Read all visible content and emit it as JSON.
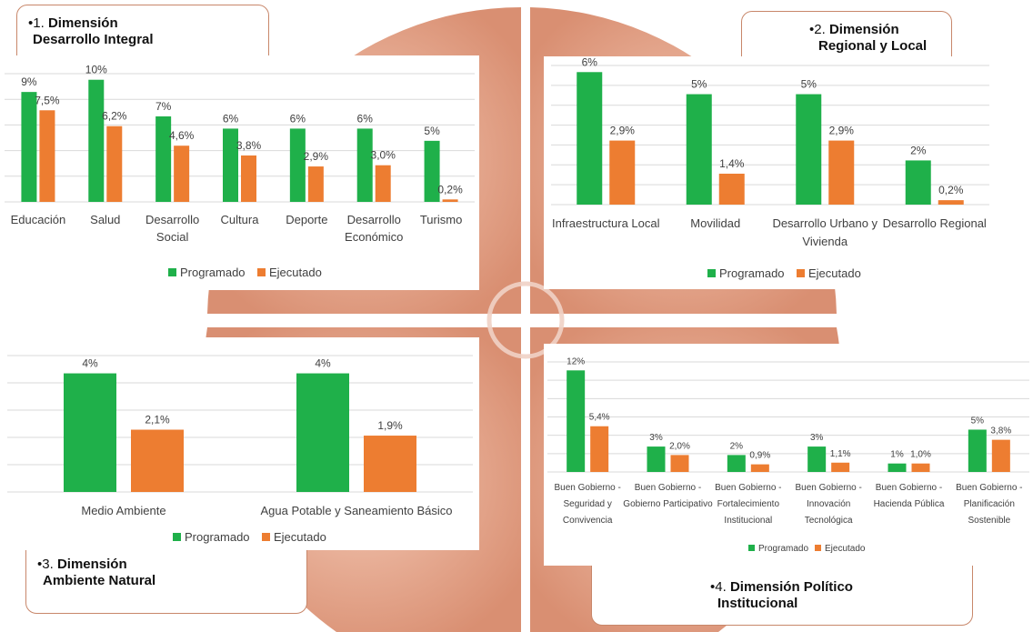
{
  "titles": {
    "d1": {
      "bullet": "•1. ",
      "line1": "Dimensión",
      "line2": "Desarrollo Integral"
    },
    "d2": {
      "bullet": "•2. ",
      "line1": "Dimensión",
      "line2": "Regional y Local"
    },
    "d3": {
      "bullet": "•3. ",
      "line1": "Dimensión",
      "line2": "Ambiente Natural"
    },
    "d4": {
      "bullet": "•4. ",
      "line1": "Dimensión Político",
      "line2": "Institucional"
    }
  },
  "colors": {
    "programado": "#1fb04a",
    "ejecutado": "#ed7d31",
    "grid": "#d9d9d9",
    "quadrant": "#dd9a80"
  },
  "chart_data": [
    {
      "type": "bar",
      "categories": [
        [
          "Educación"
        ],
        [
          "Salud"
        ],
        [
          "Desarrollo",
          "Social"
        ],
        [
          "Cultura"
        ],
        [
          "Deporte"
        ],
        [
          "Desarrollo",
          "Económico"
        ],
        [
          "Turismo"
        ]
      ],
      "series": [
        {
          "name": "Programado",
          "values": [
            9,
            10,
            7,
            6,
            6,
            6,
            5
          ],
          "labels": [
            "9%",
            "10%",
            "7%",
            "6%",
            "6%",
            "6%",
            "5%"
          ]
        },
        {
          "name": "Ejecutado",
          "values": [
            7.5,
            6.2,
            4.6,
            3.8,
            2.9,
            3.0,
            0.2
          ],
          "labels": [
            "7,5%",
            "6,2%",
            "4,6%",
            "3,8%",
            "2,9%",
            "3,0%",
            "0,2%"
          ]
        }
      ],
      "ylim": [
        0,
        10.5
      ],
      "legend": "bottom"
    },
    {
      "type": "bar",
      "categories": [
        [
          "Infraestructura Local"
        ],
        [
          "Movilidad"
        ],
        [
          "Desarrollo Urbano y",
          "Vivienda"
        ],
        [
          "Desarrollo Regional"
        ]
      ],
      "series": [
        {
          "name": "Programado",
          "values": [
            6,
            5,
            5,
            2
          ],
          "labels": [
            "6%",
            "5%",
            "5%",
            "2%"
          ]
        },
        {
          "name": "Ejecutado",
          "values": [
            2.9,
            1.4,
            2.9,
            0.2
          ],
          "labels": [
            "2,9%",
            "1,4%",
            "2,9%",
            "0,2%"
          ]
        }
      ],
      "ylim": [
        0,
        6.3
      ],
      "legend": "bottom"
    },
    {
      "type": "bar",
      "categories": [
        [
          "Medio Ambiente"
        ],
        [
          "Agua Potable y Saneamiento Básico"
        ]
      ],
      "series": [
        {
          "name": "Programado",
          "values": [
            4,
            4
          ],
          "labels": [
            "4%",
            "4%"
          ]
        },
        {
          "name": "Ejecutado",
          "values": [
            2.1,
            1.9
          ],
          "labels": [
            "2,1%",
            "1,9%"
          ]
        }
      ],
      "ylim": [
        0,
        4.6
      ],
      "legend": "bottom"
    },
    {
      "type": "bar",
      "categories": [
        [
          "Buen Gobierno -",
          "Seguridad y",
          "Convivencia"
        ],
        [
          "Buen Gobierno -",
          "Gobierno Participativo"
        ],
        [
          "Buen Gobierno -",
          "Fortalecimiento",
          "Institucional"
        ],
        [
          "Buen Gobierno -",
          "Innovación",
          "Tecnológica"
        ],
        [
          "Buen Gobierno -",
          "Hacienda Pública"
        ],
        [
          "Buen Gobierno -",
          "Planificación",
          "Sostenible"
        ]
      ],
      "series": [
        {
          "name": "Programado",
          "values": [
            12,
            3,
            2,
            3,
            1,
            5
          ],
          "labels": [
            "12%",
            "3%",
            "2%",
            "3%",
            "1%",
            "5%"
          ]
        },
        {
          "name": "Ejecutado",
          "values": [
            5.4,
            2.0,
            0.9,
            1.1,
            1.0,
            3.8
          ],
          "labels": [
            "5,4%",
            "2,0%",
            "0,9%",
            "1,1%",
            "1,0%",
            "3,8%"
          ]
        }
      ],
      "ylim": [
        0,
        13
      ],
      "legend": "bottom"
    }
  ]
}
